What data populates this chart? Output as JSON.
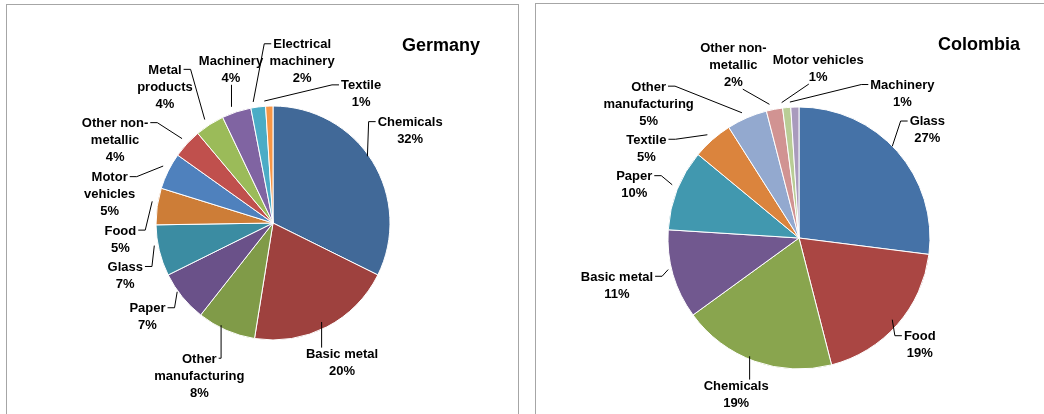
{
  "chart_data": [
    {
      "type": "pie",
      "title": "Germany",
      "categories": [
        "Chemicals",
        "Basic metal",
        "Other manufacturing",
        "Paper",
        "Glass",
        "Food",
        "Motor vehicles",
        "Other non-metallic",
        "Metal products",
        "Machinery",
        "Electrical machinery",
        "Textile"
      ],
      "values": [
        32,
        20,
        8,
        7,
        7,
        5,
        5,
        4,
        4,
        4,
        2,
        1
      ],
      "colors": [
        "#416998",
        "#9e413e",
        "#809b48",
        "#6a5189",
        "#3b8ca2",
        "#cd7d37",
        "#4f81bd",
        "#c0504d",
        "#9bbb59",
        "#8064a2",
        "#4bacc6",
        "#f79646"
      ],
      "value_labels": [
        "32%",
        "20%",
        "8%",
        "7%",
        "7%",
        "5%",
        "5%",
        "4%",
        "4%",
        "4%",
        "2%",
        "1%"
      ]
    },
    {
      "type": "pie",
      "title": "Colombia",
      "categories": [
        "Glass",
        "Food",
        "Chemicals",
        "Basic metal",
        "Paper",
        "Textile",
        "Other manufacturing",
        "Other non-metallic",
        "Motor vehicles",
        "Machinery"
      ],
      "values": [
        27,
        19,
        19,
        11,
        10,
        5,
        5,
        2,
        1,
        1
      ],
      "colors": [
        "#4572a7",
        "#aa4643",
        "#89a54e",
        "#71588f",
        "#4198af",
        "#db843d",
        "#93a9cf",
        "#d19392",
        "#b9cd96",
        "#a99bbd"
      ],
      "value_labels": [
        "27%",
        "19%",
        "19%",
        "11%",
        "10%",
        "5%",
        "5%",
        "2%",
        "1%",
        "1%"
      ]
    }
  ]
}
